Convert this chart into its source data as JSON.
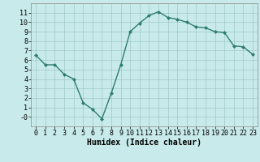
{
  "x": [
    0,
    1,
    2,
    3,
    4,
    5,
    6,
    7,
    8,
    9,
    10,
    11,
    12,
    13,
    14,
    15,
    16,
    17,
    18,
    19,
    20,
    21,
    22,
    23
  ],
  "y": [
    6.5,
    5.5,
    5.5,
    4.5,
    4.0,
    1.5,
    0.8,
    -0.2,
    2.5,
    5.5,
    9.0,
    9.9,
    10.7,
    11.1,
    10.5,
    10.3,
    10.0,
    9.5,
    9.4,
    9.0,
    8.9,
    7.5,
    7.4,
    6.6
  ],
  "line_color": "#2e7d6e",
  "marker": "D",
  "marker_size": 2.0,
  "linewidth": 1.0,
  "bg_color": "#c8eaea",
  "grid_color": "#a0c8c8",
  "xlabel": "Humidex (Indice chaleur)",
  "xlim": [
    -0.5,
    23.5
  ],
  "ylim": [
    -1,
    12
  ],
  "xticks": [
    0,
    1,
    2,
    3,
    4,
    5,
    6,
    7,
    8,
    9,
    10,
    11,
    12,
    13,
    14,
    15,
    16,
    17,
    18,
    19,
    20,
    21,
    22,
    23
  ],
  "yticks": [
    0,
    1,
    2,
    3,
    4,
    5,
    6,
    7,
    8,
    9,
    10,
    11
  ],
  "ytick_labels": [
    "-0",
    "1",
    "2",
    "3",
    "4",
    "5",
    "6",
    "7",
    "8",
    "9",
    "10",
    "11"
  ],
  "xlabel_fontsize": 7,
  "tick_fontsize": 6
}
